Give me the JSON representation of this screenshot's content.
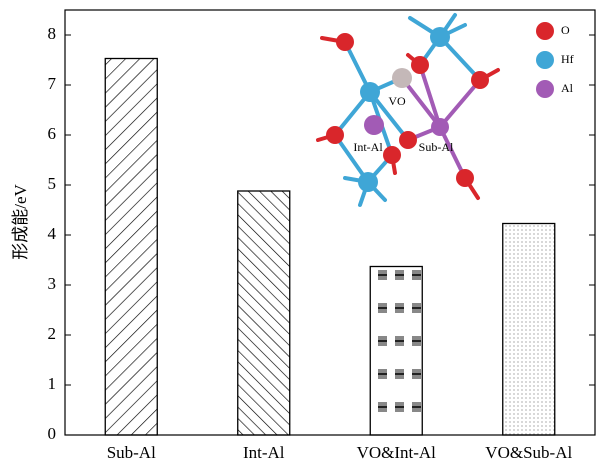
{
  "chart_data": {
    "type": "bar",
    "ylabel": "形成能/eV",
    "categories": [
      "Sub-Al",
      "Int-Al",
      "VO&Int-Al",
      "VO&Sub-Al"
    ],
    "values": [
      7.53,
      4.88,
      3.37,
      4.23
    ],
    "ylim": [
      0,
      8.5
    ],
    "yticks": [
      0,
      1,
      2,
      3,
      4,
      5,
      6,
      7,
      8
    ],
    "inset": {
      "legend": [
        {
          "name": "O",
          "color": "#d9262b"
        },
        {
          "name": "Hf",
          "color": "#3fa6d6"
        },
        {
          "name": "Al",
          "color": "#a25bb5"
        }
      ],
      "labels": [
        "VO",
        "Int-Al",
        "Sub-Al"
      ]
    }
  }
}
